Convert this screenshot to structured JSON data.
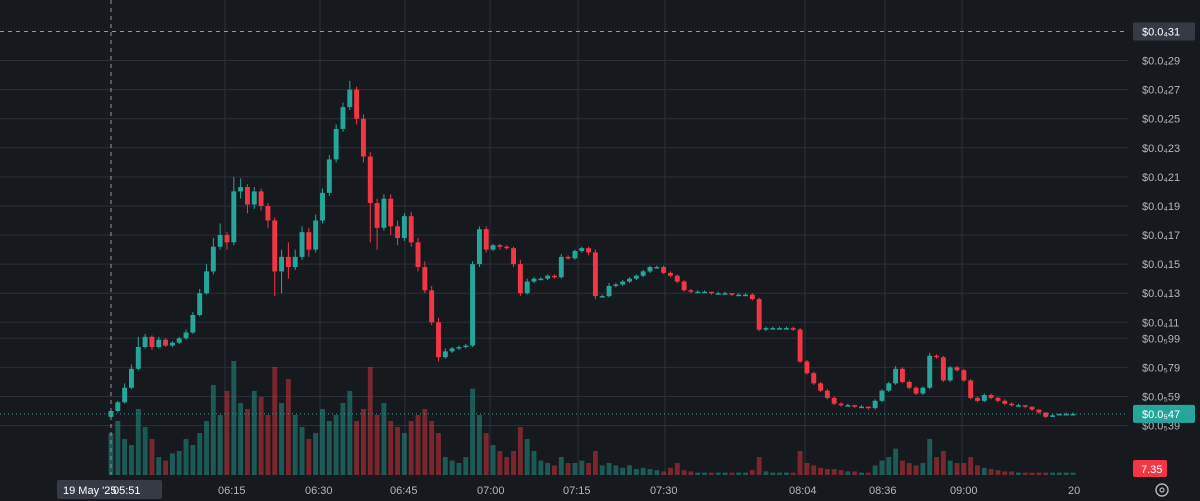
{
  "chart_data": {
    "type": "candlestick",
    "y_axis": {
      "ticks": [
        {
          "label": "$0.0₄31",
          "value": 31
        },
        {
          "label": "$0.0₄29",
          "value": 29
        },
        {
          "label": "$0.0₄27",
          "value": 27
        },
        {
          "label": "$0.0₄25",
          "value": 25
        },
        {
          "label": "$0.0₄23",
          "value": 23
        },
        {
          "label": "$0.0₄21",
          "value": 21
        },
        {
          "label": "$0.0₄19",
          "value": 19
        },
        {
          "label": "$0.0₄17",
          "value": 17
        },
        {
          "label": "$0.0₄15",
          "value": 15
        },
        {
          "label": "$0.0₄13",
          "value": 13
        },
        {
          "label": "$0.0₄11",
          "value": 11
        },
        {
          "label": "$0.0₅99",
          "value": 9.9
        },
        {
          "label": "$0.0₅79",
          "value": 7.9
        },
        {
          "label": "$0.0₅59",
          "value": 5.9
        },
        {
          "label": "$0.0₅39",
          "value": 3.9
        }
      ],
      "ylim": [
        2.7,
        32.2
      ]
    },
    "x_axis": {
      "ticks": [
        {
          "label": "19 May '25",
          "highlight": true
        },
        {
          "label": "05:51",
          "highlight": true
        },
        {
          "label": "06:15"
        },
        {
          "label": "06:30"
        },
        {
          "label": "06:45"
        },
        {
          "label": "07:00"
        },
        {
          "label": "07:15"
        },
        {
          "label": "07:30"
        },
        {
          "label": "08:04"
        },
        {
          "label": "08:36"
        },
        {
          "label": "09:00"
        },
        {
          "label": "20"
        }
      ]
    },
    "crosshair": {
      "price_label": "$0.0₄31"
    },
    "last_price": {
      "label": "$0.0₅47",
      "value": 4.7,
      "color": "#26a69a"
    },
    "volume_label": {
      "label": "7.35",
      "color": "#f23645"
    },
    "candles": [
      [
        4.5,
        4.9,
        4.3,
        5.0
      ],
      [
        4.9,
        5.5,
        4.8,
        5.6
      ],
      [
        5.5,
        6.5,
        5.4,
        6.8
      ],
      [
        6.5,
        7.8,
        6.4,
        8.1
      ],
      [
        7.8,
        9.3,
        7.7,
        10.0
      ],
      [
        9.3,
        10.0,
        9.2,
        10.2
      ],
      [
        10.0,
        9.3,
        9.1,
        10.1
      ],
      [
        9.3,
        9.8,
        9.2,
        10.0
      ],
      [
        9.8,
        9.4,
        9.3,
        9.9
      ],
      [
        9.4,
        9.6,
        9.3,
        9.7
      ],
      [
        9.6,
        9.9,
        9.5,
        10.0
      ],
      [
        9.9,
        10.3,
        9.8,
        10.5
      ],
      [
        10.3,
        11.5,
        10.2,
        11.7
      ],
      [
        11.5,
        13.0,
        11.4,
        13.3
      ],
      [
        13.0,
        14.5,
        12.9,
        15.0
      ],
      [
        14.5,
        16.2,
        14.3,
        16.8
      ],
      [
        16.2,
        17.0,
        16.0,
        17.8
      ],
      [
        17.0,
        16.5,
        16.0,
        17.2
      ],
      [
        16.5,
        20.0,
        16.3,
        21.0
      ],
      [
        20.0,
        20.3,
        19.5,
        20.9
      ],
      [
        20.3,
        19.1,
        18.5,
        20.5
      ],
      [
        19.1,
        20.0,
        18.8,
        20.3
      ],
      [
        20.0,
        19.0,
        18.7,
        20.2
      ],
      [
        19.0,
        18.0,
        17.5,
        19.2
      ],
      [
        18.0,
        14.5,
        12.8,
        18.2
      ],
      [
        14.5,
        15.5,
        13.0,
        16.0
      ],
      [
        15.5,
        14.8,
        14.0,
        16.5
      ],
      [
        14.8,
        15.5,
        14.6,
        16.0
      ],
      [
        15.5,
        17.2,
        15.3,
        17.6
      ],
      [
        17.2,
        16.0,
        15.5,
        17.5
      ],
      [
        16.0,
        18.0,
        15.8,
        18.4
      ],
      [
        18.0,
        19.9,
        17.8,
        20.2
      ],
      [
        19.9,
        22.2,
        19.7,
        22.5
      ],
      [
        22.2,
        24.3,
        22.0,
        24.6
      ],
      [
        24.3,
        25.8,
        24.1,
        26.1
      ],
      [
        25.8,
        27.0,
        25.6,
        27.6
      ],
      [
        27.0,
        25.0,
        24.6,
        27.2
      ],
      [
        25.0,
        22.4,
        22.0,
        25.3
      ],
      [
        22.4,
        19.2,
        16.5,
        22.7
      ],
      [
        19.2,
        17.5,
        16.0,
        19.5
      ],
      [
        17.5,
        19.5,
        17.3,
        19.8
      ],
      [
        19.5,
        17.6,
        17.0,
        19.8
      ],
      [
        17.6,
        16.8,
        16.3,
        18.0
      ],
      [
        16.8,
        18.3,
        16.6,
        18.5
      ],
      [
        18.3,
        16.5,
        16.2,
        18.6
      ],
      [
        16.5,
        14.8,
        14.5,
        16.8
      ],
      [
        14.8,
        13.2,
        13.0,
        15.2
      ],
      [
        13.2,
        11.0,
        10.8,
        13.5
      ],
      [
        11.0,
        8.6,
        8.3,
        11.3
      ],
      [
        8.6,
        9.0,
        8.5,
        9.2
      ],
      [
        9.0,
        9.2,
        8.9,
        9.3
      ],
      [
        9.2,
        9.3,
        9.1,
        9.4
      ],
      [
        9.3,
        9.4,
        9.2,
        9.5
      ],
      [
        9.4,
        15.0,
        9.3,
        15.2
      ],
      [
        15.0,
        17.4,
        14.8,
        17.6
      ],
      [
        17.4,
        16.0,
        15.8,
        17.6
      ],
      [
        16.0,
        16.3,
        15.9,
        16.4
      ],
      [
        16.3,
        16.2,
        16.0,
        16.4
      ],
      [
        16.2,
        16.1,
        16.0,
        16.3
      ],
      [
        16.1,
        15.0,
        14.8,
        16.2
      ],
      [
        15.0,
        13.0,
        12.8,
        15.3
      ],
      [
        13.0,
        13.8,
        12.9,
        14.0
      ],
      [
        13.8,
        14.0,
        13.7,
        14.1
      ],
      [
        14.0,
        14.0,
        13.9,
        14.1
      ],
      [
        14.0,
        14.2,
        13.9,
        14.3
      ],
      [
        14.2,
        14.1,
        14.0,
        14.3
      ],
      [
        14.1,
        15.5,
        14.0,
        15.7
      ],
      [
        15.5,
        15.4,
        15.3,
        15.6
      ],
      [
        15.4,
        15.9,
        15.3,
        16.0
      ],
      [
        15.9,
        16.1,
        15.8,
        16.2
      ],
      [
        16.1,
        15.8,
        15.6,
        16.2
      ],
      [
        15.8,
        12.8,
        12.6,
        16.0
      ],
      [
        12.8,
        12.8,
        12.7,
        12.9
      ],
      [
        12.8,
        13.5,
        12.7,
        13.7
      ],
      [
        13.5,
        13.6,
        13.4,
        13.7
      ],
      [
        13.6,
        13.8,
        13.5,
        13.9
      ],
      [
        13.8,
        14.0,
        13.7,
        14.1
      ],
      [
        14.0,
        14.2,
        13.9,
        14.3
      ],
      [
        14.2,
        14.5,
        14.1,
        14.6
      ],
      [
        14.5,
        14.8,
        14.4,
        14.9
      ],
      [
        14.8,
        14.8,
        14.7,
        14.9
      ],
      [
        14.8,
        14.4,
        14.3,
        14.9
      ],
      [
        14.4,
        14.2,
        14.1,
        14.5
      ],
      [
        14.2,
        13.8,
        13.7,
        14.3
      ],
      [
        13.8,
        13.2,
        13.1,
        13.9
      ],
      [
        13.2,
        13.1,
        13.0,
        13.3
      ],
      [
        13.1,
        13.1,
        13.0,
        13.2
      ],
      [
        13.1,
        13.1,
        13.0,
        13.2
      ],
      [
        13.1,
        13.0,
        12.9,
        13.1
      ],
      [
        13.0,
        13.0,
        12.9,
        13.1
      ],
      [
        13.0,
        13.0,
        12.9,
        13.1
      ],
      [
        13.0,
        12.9,
        12.8,
        13.0
      ],
      [
        12.9,
        12.9,
        12.8,
        13.0
      ],
      [
        12.9,
        12.9,
        12.8,
        13.0
      ],
      [
        12.9,
        12.6,
        12.5,
        13.0
      ],
      [
        12.6,
        10.5,
        10.4,
        12.7
      ],
      [
        10.5,
        10.6,
        10.4,
        10.7
      ],
      [
        10.6,
        10.6,
        10.5,
        10.7
      ],
      [
        10.6,
        10.6,
        10.5,
        10.7
      ],
      [
        10.6,
        10.6,
        10.5,
        10.7
      ],
      [
        10.6,
        10.5,
        10.4,
        10.7
      ],
      [
        10.5,
        8.3,
        8.2,
        10.6
      ],
      [
        8.3,
        7.5,
        7.4,
        8.4
      ],
      [
        7.5,
        6.8,
        6.7,
        7.6
      ],
      [
        6.8,
        6.3,
        6.2,
        6.9
      ],
      [
        6.3,
        5.8,
        5.7,
        6.4
      ],
      [
        5.8,
        5.4,
        5.3,
        5.9
      ],
      [
        5.4,
        5.3,
        5.2,
        5.5
      ],
      [
        5.3,
        5.3,
        5.2,
        5.4
      ],
      [
        5.3,
        5.2,
        5.1,
        5.3
      ],
      [
        5.2,
        5.2,
        5.1,
        5.3
      ],
      [
        5.2,
        5.1,
        5.0,
        5.2
      ],
      [
        5.1,
        5.6,
        5.0,
        5.7
      ],
      [
        5.6,
        6.3,
        5.5,
        6.4
      ],
      [
        6.3,
        6.8,
        6.2,
        6.9
      ],
      [
        6.8,
        7.8,
        6.7,
        8.0
      ],
      [
        7.8,
        6.9,
        6.8,
        7.9
      ],
      [
        6.9,
        6.5,
        6.4,
        7.0
      ],
      [
        6.5,
        6.1,
        6.0,
        6.6
      ],
      [
        6.1,
        6.5,
        6.0,
        6.6
      ],
      [
        6.5,
        8.7,
        6.4,
        8.9
      ],
      [
        8.7,
        8.6,
        8.5,
        8.8
      ],
      [
        8.6,
        7.0,
        6.9,
        8.7
      ],
      [
        7.0,
        7.9,
        6.9,
        8.0
      ],
      [
        7.9,
        7.7,
        7.6,
        8.0
      ],
      [
        7.7,
        7.0,
        6.9,
        7.8
      ],
      [
        7.0,
        5.8,
        5.7,
        7.1
      ],
      [
        5.8,
        5.6,
        5.5,
        5.9
      ],
      [
        5.6,
        6.0,
        5.5,
        6.1
      ],
      [
        6.0,
        5.8,
        5.7,
        6.1
      ],
      [
        5.8,
        5.6,
        5.5,
        5.9
      ],
      [
        5.6,
        5.4,
        5.3,
        5.7
      ],
      [
        5.4,
        5.3,
        5.2,
        5.5
      ],
      [
        5.3,
        5.3,
        5.2,
        5.4
      ],
      [
        5.3,
        5.2,
        5.1,
        5.3
      ],
      [
        5.2,
        5.0,
        4.9,
        5.2
      ],
      [
        5.0,
        4.8,
        4.7,
        5.0
      ],
      [
        4.8,
        4.5,
        4.4,
        4.8
      ],
      [
        4.5,
        4.6,
        4.5,
        4.7
      ],
      [
        4.6,
        4.7,
        4.6,
        4.7
      ],
      [
        4.7,
        4.7,
        4.6,
        4.8
      ],
      [
        4.7,
        4.7,
        4.6,
        4.8
      ]
    ],
    "volumes": [
      0.35,
      0.45,
      0.3,
      0.25,
      0.55,
      0.4,
      0.3,
      0.15,
      0.12,
      0.18,
      0.2,
      0.3,
      0.25,
      0.35,
      0.45,
      0.75,
      0.5,
      0.7,
      0.95,
      0.6,
      0.55,
      0.7,
      0.65,
      0.5,
      0.9,
      0.6,
      0.8,
      0.5,
      0.4,
      0.3,
      0.35,
      0.55,
      0.45,
      0.5,
      0.6,
      0.7,
      0.45,
      0.55,
      0.9,
      0.5,
      0.6,
      0.45,
      0.4,
      0.35,
      0.45,
      0.5,
      0.55,
      0.45,
      0.35,
      0.15,
      0.12,
      0.1,
      0.15,
      0.72,
      0.5,
      0.35,
      0.25,
      0.2,
      0.15,
      0.2,
      0.4,
      0.3,
      0.2,
      0.12,
      0.1,
      0.08,
      0.15,
      0.1,
      0.1,
      0.12,
      0.1,
      0.2,
      0.08,
      0.1,
      0.08,
      0.06,
      0.08,
      0.05,
      0.06,
      0.05,
      0.04,
      0.03,
      0.06,
      0.1,
      0.04,
      0.03,
      0.02,
      0.02,
      0.02,
      0.02,
      0.02,
      0.02,
      0.02,
      0.02,
      0.04,
      0.15,
      0.03,
      0.02,
      0.02,
      0.02,
      0.02,
      0.2,
      0.1,
      0.08,
      0.06,
      0.05,
      0.05,
      0.04,
      0.03,
      0.03,
      0.02,
      0.02,
      0.08,
      0.12,
      0.15,
      0.22,
      0.12,
      0.1,
      0.08,
      0.1,
      0.3,
      0.15,
      0.2,
      0.12,
      0.1,
      0.1,
      0.15,
      0.08,
      0.06,
      0.05,
      0.04,
      0.03,
      0.03,
      0.02,
      0.02,
      0.02,
      0.02,
      0.02,
      0.02,
      0.02,
      0.02,
      0.02
    ],
    "colors": {
      "up": "#26a69a",
      "down": "#f23645",
      "grid": "#2a2e39",
      "bg": "#161a1e"
    }
  }
}
